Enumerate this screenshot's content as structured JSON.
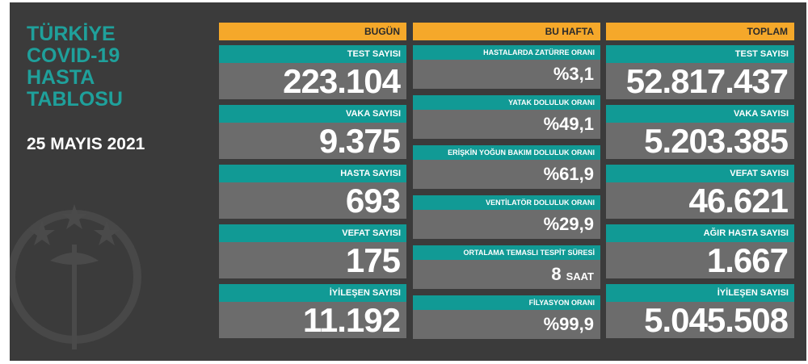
{
  "title": [
    "TÜRKİYE",
    "COVID-19",
    "HASTA",
    "TABLOSU"
  ],
  "date": "25 MAYIS 2021",
  "columns": [
    {
      "header": "BUGÜN",
      "items": [
        {
          "label": "TEST SAYISI",
          "value": "223.104"
        },
        {
          "label": "VAKA SAYISI",
          "value": "9.375"
        },
        {
          "label": "HASTA SAYISI",
          "value": "693"
        },
        {
          "label": "VEFAT SAYISI",
          "value": "175"
        },
        {
          "label": "İYİLEŞEN SAYISI",
          "value": "11.192"
        }
      ]
    },
    {
      "header": "BU HAFTA",
      "items": [
        {
          "label": "HASTALARDA ZATÜRRE ORANI",
          "value": "%3,1"
        },
        {
          "label": "YATAK DOLULUK ORANI",
          "value": "%49,1"
        },
        {
          "label": "ERİŞKİN YOĞUN BAKIM DOLULUK ORANI",
          "value": "%61,9"
        },
        {
          "label": "VENTİLATÖR DOLULUK ORANI",
          "value": "%29,9"
        },
        {
          "label": "ORTALAMA TEMASLI TESPİT SÜRESİ",
          "value": "8",
          "unit": "SAAT"
        },
        {
          "label": "FİLYASYON ORANI",
          "value": "%99,9"
        }
      ]
    },
    {
      "header": "TOPLAM",
      "items": [
        {
          "label": "TEST SAYISI",
          "value": "52.817.437"
        },
        {
          "label": "VAKA SAYISI",
          "value": "5.203.385"
        },
        {
          "label": "VEFAT SAYISI",
          "value": "46.621"
        },
        {
          "label": "AĞIR HASTA SAYISI",
          "value": "1.667"
        },
        {
          "label": "İYİLEŞEN SAYISI",
          "value": "5.045.508"
        }
      ]
    }
  ]
}
